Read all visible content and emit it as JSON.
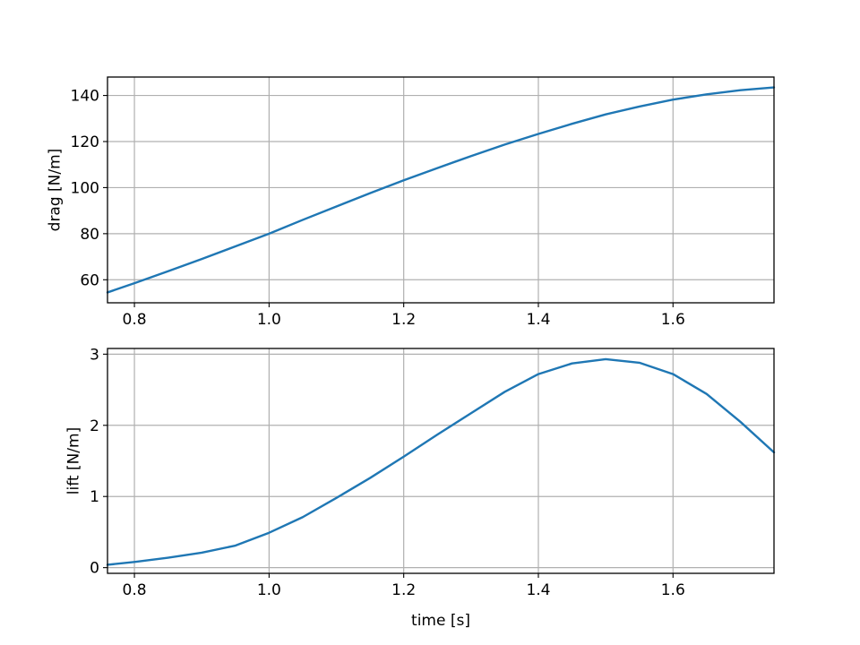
{
  "chart_data": [
    {
      "type": "line",
      "title": "",
      "xlabel": "",
      "ylabel": "drag [N/m]",
      "xlim": [
        0.76,
        1.75
      ],
      "ylim": [
        50,
        148
      ],
      "xticks": [
        0.8,
        1.0,
        1.2,
        1.4,
        1.6
      ],
      "xtick_labels": [
        "0.8",
        "1.0",
        "1.2",
        "1.4",
        "1.6"
      ],
      "yticks": [
        60,
        80,
        100,
        120,
        140
      ],
      "ytick_labels": [
        "60",
        "80",
        "100",
        "120",
        "140"
      ],
      "grid": true,
      "series": [
        {
          "color": "#1f77b4",
          "x": [
            0.76,
            0.8,
            0.85,
            0.9,
            0.95,
            1.0,
            1.05,
            1.1,
            1.15,
            1.2,
            1.25,
            1.3,
            1.35,
            1.4,
            1.45,
            1.5,
            1.55,
            1.6,
            1.65,
            1.7,
            1.75
          ],
          "y": [
            54.5,
            58.5,
            63.7,
            69.0,
            74.5,
            80.0,
            86.0,
            91.8,
            97.6,
            103.2,
            108.5,
            113.7,
            118.7,
            123.3,
            127.7,
            131.8,
            135.2,
            138.2,
            140.5,
            142.3,
            143.5
          ]
        }
      ]
    },
    {
      "type": "line",
      "title": "",
      "xlabel": "time [s]",
      "ylabel": "lift [N/m]",
      "xlim": [
        0.76,
        1.75
      ],
      "ylim": [
        -0.08,
        3.08
      ],
      "xticks": [
        0.8,
        1.0,
        1.2,
        1.4,
        1.6
      ],
      "xtick_labels": [
        "0.8",
        "1.0",
        "1.2",
        "1.4",
        "1.6"
      ],
      "yticks": [
        0,
        1,
        2,
        3
      ],
      "ytick_labels": [
        "0",
        "1",
        "2",
        "3"
      ],
      "grid": true,
      "series": [
        {
          "color": "#1f77b4",
          "x": [
            0.76,
            0.8,
            0.85,
            0.9,
            0.95,
            1.0,
            1.05,
            1.1,
            1.15,
            1.2,
            1.25,
            1.3,
            1.35,
            1.4,
            1.45,
            1.5,
            1.55,
            1.6,
            1.65,
            1.7,
            1.75
          ],
          "y": [
            0.04,
            0.08,
            0.14,
            0.21,
            0.31,
            0.49,
            0.71,
            0.98,
            1.26,
            1.56,
            1.87,
            2.17,
            2.47,
            2.72,
            2.87,
            2.93,
            2.88,
            2.72,
            2.44,
            2.05,
            1.62
          ]
        }
      ]
    }
  ]
}
